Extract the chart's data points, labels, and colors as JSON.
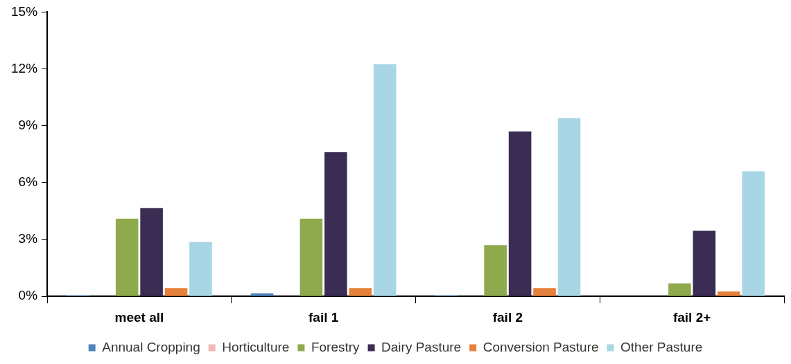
{
  "chart_data": {
    "type": "bar",
    "categories": [
      "meet all",
      "fail 1",
      "fail 2",
      "fail 2+"
    ],
    "series": [
      {
        "name": "Annual Cropping",
        "color": "#4f81bd",
        "values": [
          0.05,
          0.15,
          0.05,
          0
        ]
      },
      {
        "name": "Horticulture",
        "color": "#f2b8b8",
        "values": [
          null,
          0,
          null,
          0
        ]
      },
      {
        "name": "Forestry",
        "color": "#8faa4c",
        "values": [
          4.1,
          4.1,
          2.7,
          0.68
        ]
      },
      {
        "name": "Dairy Pasture",
        "color": "#3b2c54",
        "values": [
          4.65,
          7.6,
          8.7,
          3.46
        ]
      },
      {
        "name": "Conversion Pasture",
        "color": "#e5813a",
        "values": [
          0.44,
          0.44,
          0.44,
          0.25
        ]
      },
      {
        "name": "Other Pasture",
        "color": "#a9d6e5",
        "values": [
          2.86,
          12.25,
          9.4,
          6.6
        ]
      }
    ],
    "ylim": [
      0,
      15
    ],
    "yticks": [
      {
        "value": 0,
        "label": "0%"
      },
      {
        "value": 3,
        "label": "3%"
      },
      {
        "value": 6,
        "label": "6%"
      },
      {
        "value": 9,
        "label": "9%"
      },
      {
        "value": 12,
        "label": "12%"
      },
      {
        "value": 15,
        "label": "15%"
      }
    ],
    "grid": false,
    "legend": "bottom"
  }
}
